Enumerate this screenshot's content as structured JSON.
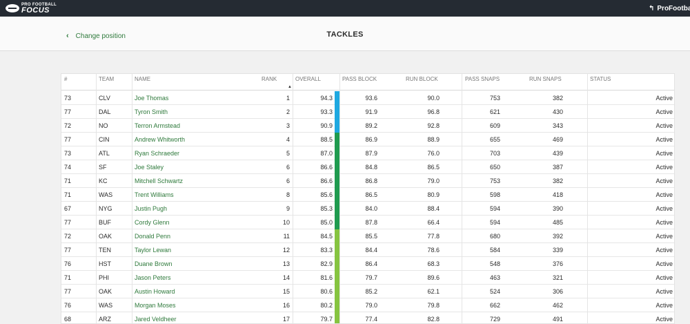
{
  "header": {
    "logo_small": "PRO FOOTBALL",
    "logo_big": "FOCUS",
    "user_link": "ProFootballFocus",
    "user_icon": "back-arrow-icon"
  },
  "subheader": {
    "back_label": "Change position",
    "title": "TACKLES"
  },
  "table": {
    "columns": [
      "#",
      "TEAM",
      "NAME",
      "RANK",
      "OVERALL",
      "PASS BLOCK",
      "RUN BLOCK",
      "PASS SNAPS",
      "RUN SNAPS",
      "STATUS"
    ],
    "sort_indicator": "▲",
    "tier_colors": {
      "top": "#1ea8e0",
      "high": "#1f9b4f",
      "good": "#86c440"
    },
    "rows": [
      {
        "num": "73",
        "team": "CLV",
        "name": "Joe Thomas",
        "rank": "1",
        "overall": "94.3",
        "pass_block": "93.6",
        "run_block": "90.0",
        "pass_snaps": "753",
        "run_snaps": "382",
        "status": "Active",
        "tier": "top"
      },
      {
        "num": "77",
        "team": "DAL",
        "name": "Tyron Smith",
        "rank": "2",
        "overall": "93.3",
        "pass_block": "91.9",
        "run_block": "96.8",
        "pass_snaps": "621",
        "run_snaps": "430",
        "status": "Active",
        "tier": "top"
      },
      {
        "num": "72",
        "team": "NO",
        "name": "Terron Armstead",
        "rank": "3",
        "overall": "90.9",
        "pass_block": "89.2",
        "run_block": "92.8",
        "pass_snaps": "609",
        "run_snaps": "343",
        "status": "Active",
        "tier": "top"
      },
      {
        "num": "77",
        "team": "CIN",
        "name": "Andrew Whitworth",
        "rank": "4",
        "overall": "88.5",
        "pass_block": "86.9",
        "run_block": "88.9",
        "pass_snaps": "655",
        "run_snaps": "469",
        "status": "Active",
        "tier": "high"
      },
      {
        "num": "73",
        "team": "ATL",
        "name": "Ryan Schraeder",
        "rank": "5",
        "overall": "87.0",
        "pass_block": "87.9",
        "run_block": "76.0",
        "pass_snaps": "703",
        "run_snaps": "439",
        "status": "Active",
        "tier": "high"
      },
      {
        "num": "74",
        "team": "SF",
        "name": "Joe Staley",
        "rank": "6",
        "overall": "86.6",
        "pass_block": "84.8",
        "run_block": "86.5",
        "pass_snaps": "650",
        "run_snaps": "387",
        "status": "Active",
        "tier": "high"
      },
      {
        "num": "71",
        "team": "KC",
        "name": "Mitchell Schwartz",
        "rank": "6",
        "overall": "86.6",
        "pass_block": "86.8",
        "run_block": "79.0",
        "pass_snaps": "753",
        "run_snaps": "382",
        "status": "Active",
        "tier": "high"
      },
      {
        "num": "71",
        "team": "WAS",
        "name": "Trent Williams",
        "rank": "8",
        "overall": "85.6",
        "pass_block": "86.5",
        "run_block": "80.9",
        "pass_snaps": "598",
        "run_snaps": "418",
        "status": "Active",
        "tier": "high"
      },
      {
        "num": "67",
        "team": "NYG",
        "name": "Justin Pugh",
        "rank": "9",
        "overall": "85.3",
        "pass_block": "84.0",
        "run_block": "88.4",
        "pass_snaps": "594",
        "run_snaps": "390",
        "status": "Active",
        "tier": "high"
      },
      {
        "num": "77",
        "team": "BUF",
        "name": "Cordy Glenn",
        "rank": "10",
        "overall": "85.0",
        "pass_block": "87.8",
        "run_block": "66.4",
        "pass_snaps": "594",
        "run_snaps": "485",
        "status": "Active",
        "tier": "high"
      },
      {
        "num": "72",
        "team": "OAK",
        "name": "Donald Penn",
        "rank": "11",
        "overall": "84.5",
        "pass_block": "85.5",
        "run_block": "77.8",
        "pass_snaps": "680",
        "run_snaps": "392",
        "status": "Active",
        "tier": "good"
      },
      {
        "num": "77",
        "team": "TEN",
        "name": "Taylor Lewan",
        "rank": "12",
        "overall": "83.3",
        "pass_block": "84.4",
        "run_block": "78.6",
        "pass_snaps": "584",
        "run_snaps": "339",
        "status": "Active",
        "tier": "good"
      },
      {
        "num": "76",
        "team": "HST",
        "name": "Duane Brown",
        "rank": "13",
        "overall": "82.9",
        "pass_block": "86.4",
        "run_block": "68.3",
        "pass_snaps": "548",
        "run_snaps": "376",
        "status": "Active",
        "tier": "good"
      },
      {
        "num": "71",
        "team": "PHI",
        "name": "Jason Peters",
        "rank": "14",
        "overall": "81.6",
        "pass_block": "79.7",
        "run_block": "89.6",
        "pass_snaps": "463",
        "run_snaps": "321",
        "status": "Active",
        "tier": "good"
      },
      {
        "num": "77",
        "team": "OAK",
        "name": "Austin Howard",
        "rank": "15",
        "overall": "80.6",
        "pass_block": "85.2",
        "run_block": "62.1",
        "pass_snaps": "524",
        "run_snaps": "306",
        "status": "Active",
        "tier": "good"
      },
      {
        "num": "76",
        "team": "WAS",
        "name": "Morgan Moses",
        "rank": "16",
        "overall": "80.2",
        "pass_block": "79.0",
        "run_block": "79.8",
        "pass_snaps": "662",
        "run_snaps": "462",
        "status": "Active",
        "tier": "good"
      },
      {
        "num": "68",
        "team": "ARZ",
        "name": "Jared Veldheer",
        "rank": "17",
        "overall": "79.7",
        "pass_block": "77.4",
        "run_block": "82.8",
        "pass_snaps": "729",
        "run_snaps": "491",
        "status": "Active",
        "tier": "good"
      }
    ]
  }
}
